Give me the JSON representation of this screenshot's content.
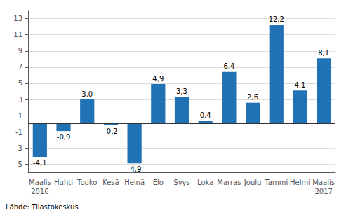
{
  "chart_data": {
    "type": "bar",
    "categories": [
      "Maalis\n2016",
      "Huhti",
      "Touko",
      "Kesä",
      "Heinä",
      "Elo",
      "Syys",
      "Loka",
      "Marras",
      "Joulu",
      "Tammi",
      "Helmi",
      "Maalis\n2017"
    ],
    "values": [
      -4.1,
      -0.9,
      3.0,
      -0.2,
      -4.9,
      4.9,
      3.3,
      0.4,
      6.4,
      2.6,
      12.2,
      4.1,
      8.1
    ],
    "value_labels": [
      "-4,1",
      "-0,9",
      "3,0",
      "-0,2",
      "-4,9",
      "4,9",
      "3,3",
      "0,4",
      "6,4",
      "2,6",
      "12,2",
      "4,1",
      "8,1"
    ],
    "data_labels": true,
    "color": "#2171b5",
    "ylim": [
      -6,
      14
    ],
    "yticks": [
      -5,
      -3,
      -1,
      1,
      3,
      5,
      7,
      9,
      11,
      13
    ],
    "grid": true,
    "annotation": "Lähde: Tilastokeskus"
  }
}
